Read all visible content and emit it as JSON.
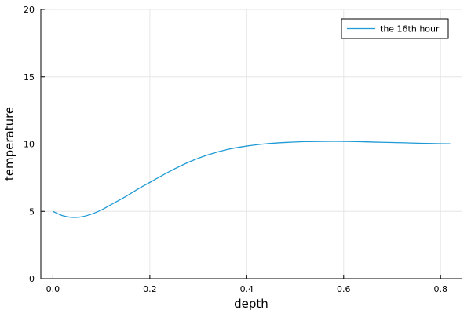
{
  "chart_data": {
    "type": "line",
    "xlabel": "depth",
    "ylabel": "temperature",
    "xlim": [
      -0.025,
      0.845
    ],
    "ylim": [
      0,
      20
    ],
    "x_ticks": [
      0.0,
      0.2,
      0.4,
      0.6,
      0.8
    ],
    "x_tick_labels": [
      "0.0",
      "0.2",
      "0.4",
      "0.6",
      "0.8"
    ],
    "y_ticks": [
      0,
      5,
      10,
      15,
      20
    ],
    "y_tick_labels": [
      "0",
      "5",
      "10",
      "15",
      "20"
    ],
    "grid": true,
    "legend_position": "top-right",
    "series": [
      {
        "name": "the 16th hour",
        "color": "#1f9ad6",
        "x": [
          0.0,
          0.02,
          0.04,
          0.06,
          0.08,
          0.1,
          0.12,
          0.15,
          0.18,
          0.2,
          0.24,
          0.28,
          0.32,
          0.36,
          0.4,
          0.44,
          0.48,
          0.52,
          0.56,
          0.6,
          0.64,
          0.68,
          0.72,
          0.76,
          0.8,
          0.82
        ],
        "y": [
          5.0,
          4.68,
          4.55,
          4.6,
          4.8,
          5.1,
          5.5,
          6.1,
          6.75,
          7.15,
          7.95,
          8.65,
          9.2,
          9.6,
          9.85,
          10.02,
          10.12,
          10.18,
          10.2,
          10.2,
          10.17,
          10.13,
          10.1,
          10.06,
          10.03,
          10.02
        ]
      }
    ]
  }
}
